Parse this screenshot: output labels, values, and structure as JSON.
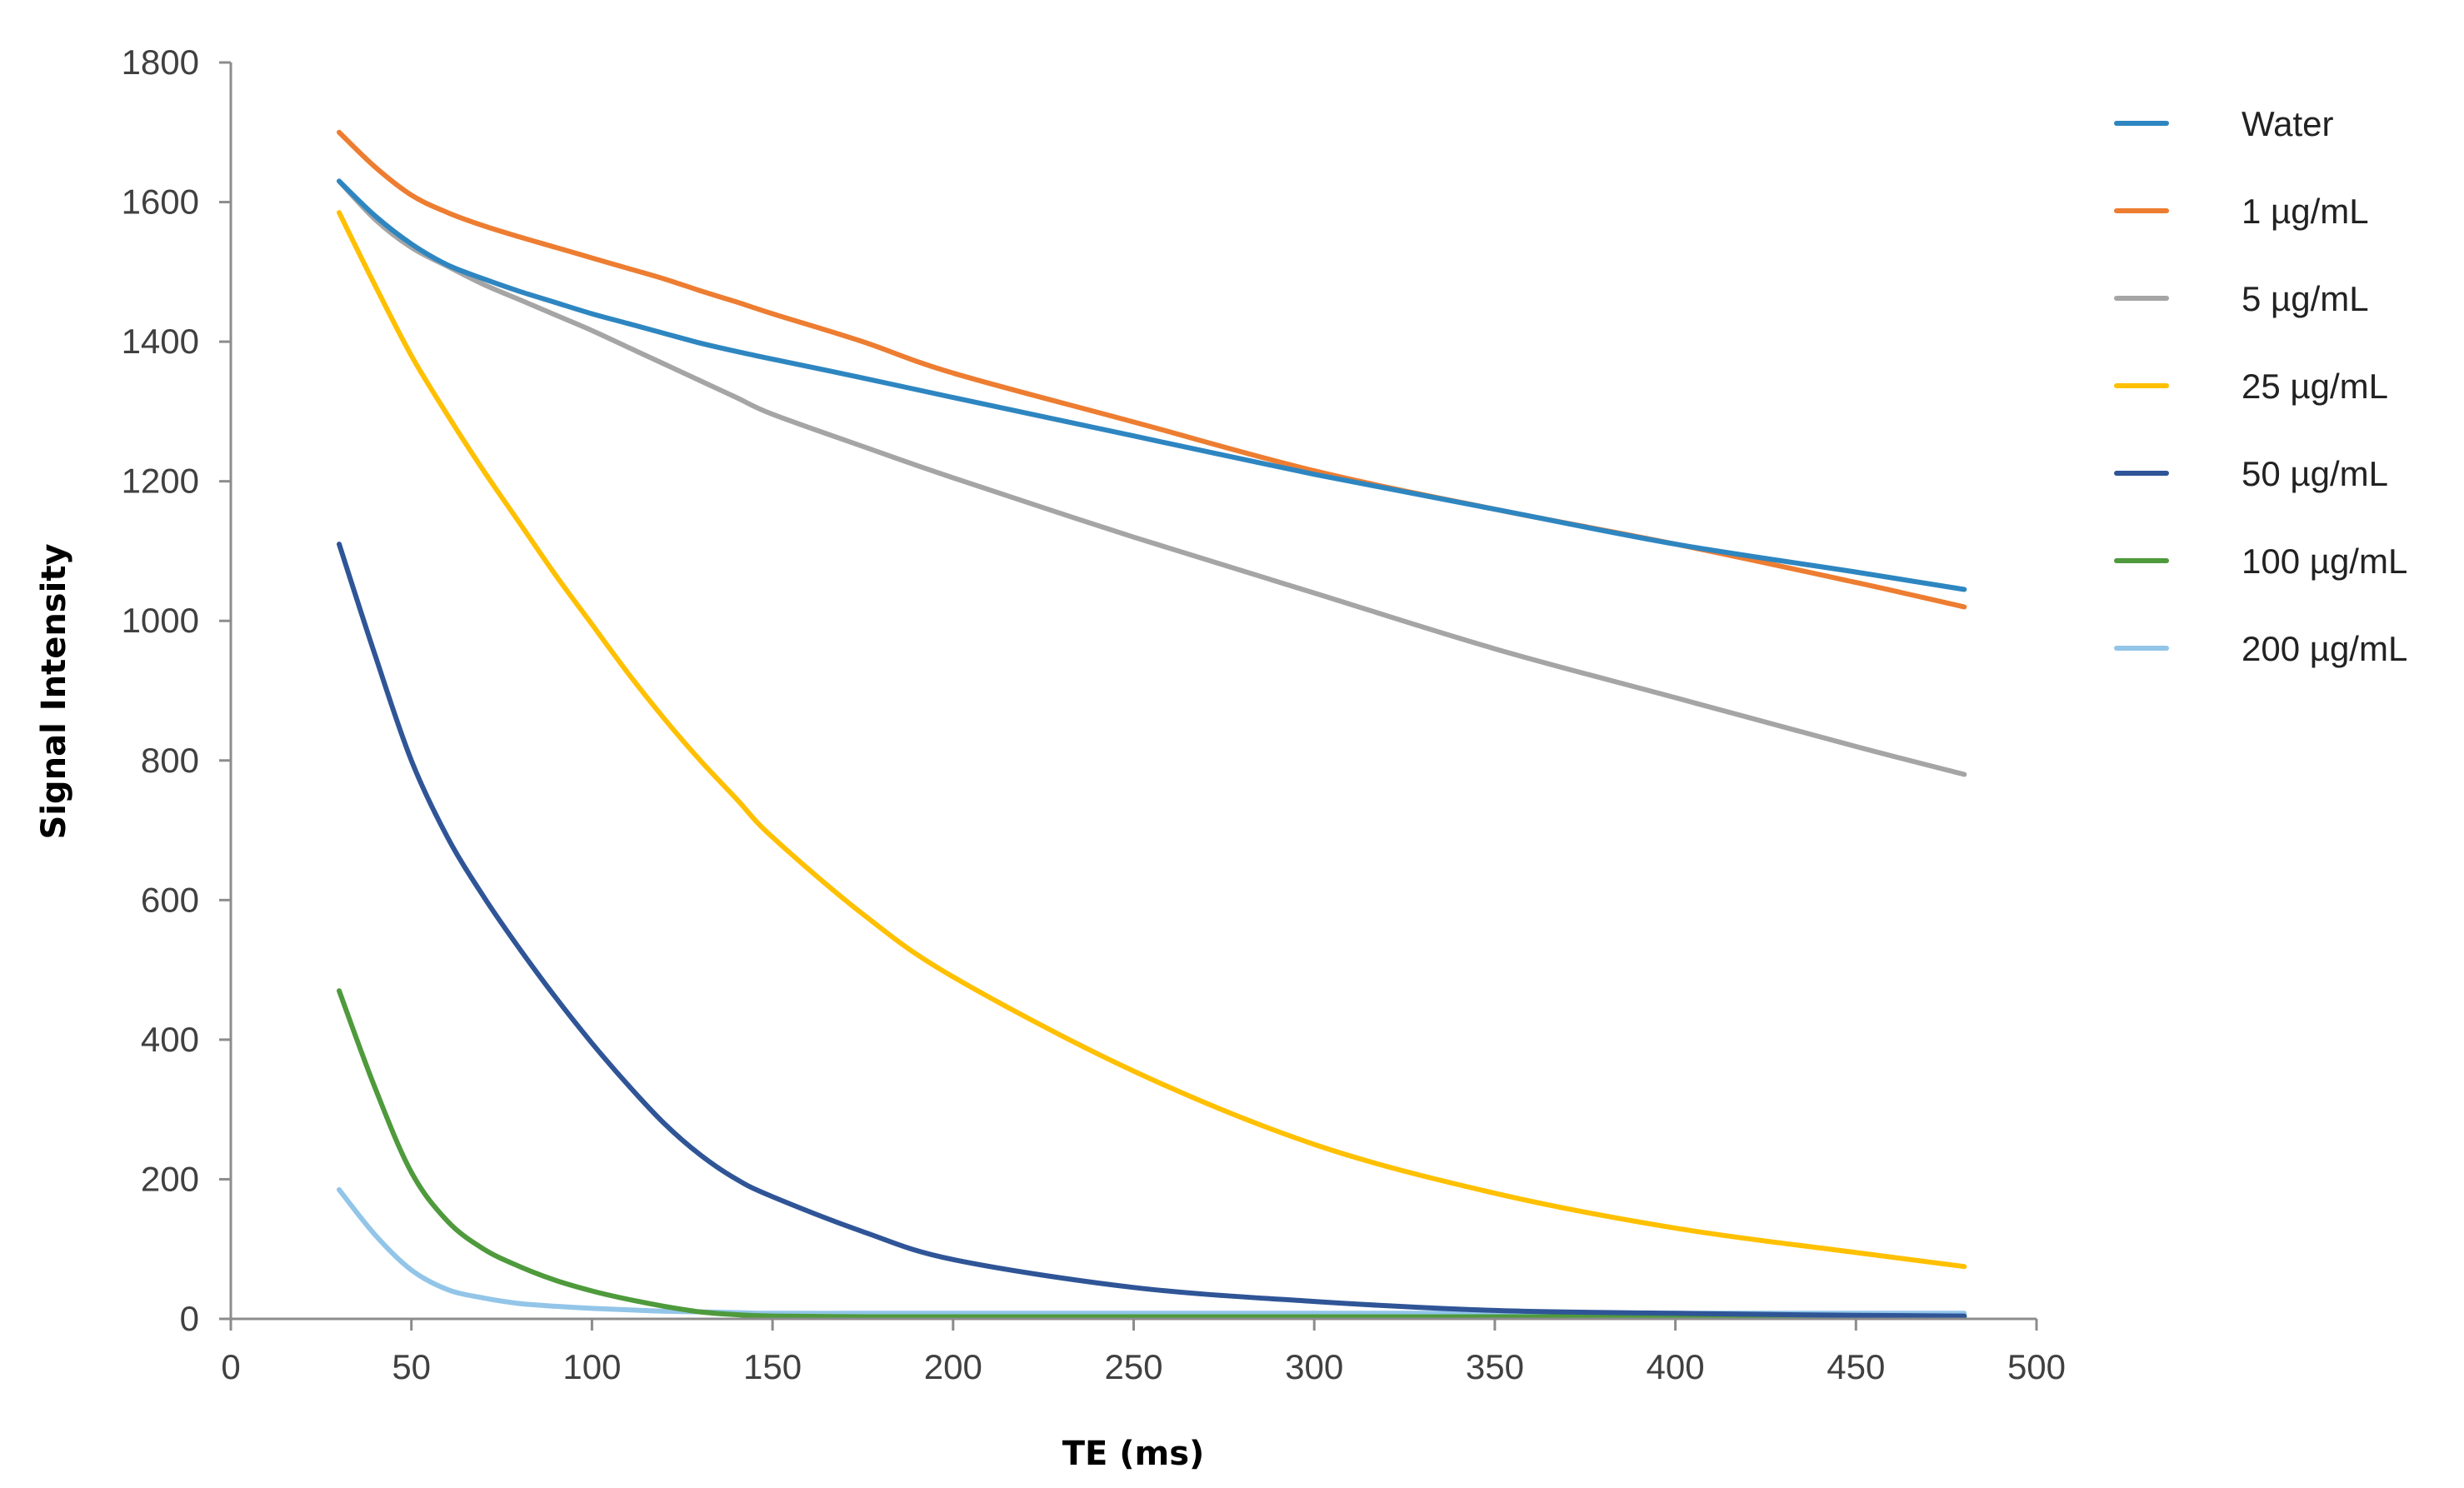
{
  "chart_data": {
    "type": "line",
    "title": "",
    "xlabel": "TE (ms)",
    "ylabel": "Signal Intensity",
    "xlim": [
      0,
      500
    ],
    "ylim": [
      0,
      1800
    ],
    "xticks": [
      0,
      50,
      100,
      150,
      200,
      250,
      300,
      350,
      400,
      450,
      500
    ],
    "yticks": [
      0,
      200,
      400,
      600,
      800,
      1000,
      1200,
      1400,
      1600,
      1800
    ],
    "grid": false,
    "legend_position": "right",
    "x": [
      30,
      40,
      50,
      60,
      70,
      80,
      90,
      100,
      110,
      120,
      130,
      140,
      150,
      175,
      200,
      250,
      300,
      350,
      400,
      450,
      480
    ],
    "series": [
      {
        "name": "Water",
        "color": "#2E86C1",
        "values": [
          1630,
          1580,
          1540,
          1510,
          1490,
          1472,
          1456,
          1440,
          1426,
          1412,
          1398,
          1386,
          1375,
          1348,
          1320,
          1265,
          1210,
          1160,
          1110,
          1070,
          1045
        ]
      },
      {
        "name": "1 µg/mL",
        "color": "#ED7D31",
        "values": [
          1700,
          1650,
          1610,
          1585,
          1566,
          1550,
          1535,
          1520,
          1505,
          1490,
          1473,
          1457,
          1440,
          1400,
          1355,
          1285,
          1215,
          1160,
          1110,
          1055,
          1020
        ]
      },
      {
        "name": "5 µg/mL",
        "color": "#A5A5A5",
        "values": [
          1630,
          1575,
          1535,
          1508,
          1482,
          1460,
          1438,
          1416,
          1392,
          1368,
          1344,
          1320,
          1296,
          1250,
          1205,
          1120,
          1040,
          960,
          890,
          820,
          780
        ]
      },
      {
        "name": "25 µg/mL",
        "color": "#FFC000",
        "values": [
          1585,
          1480,
          1380,
          1295,
          1215,
          1140,
          1065,
          995,
          925,
          860,
          800,
          745,
          690,
          580,
          490,
          355,
          250,
          180,
          130,
          95,
          75
        ]
      },
      {
        "name": "50 µg/mL",
        "color": "#2F5597",
        "values": [
          1110,
          950,
          800,
          690,
          605,
          530,
          460,
          395,
          335,
          280,
          235,
          200,
          175,
          125,
          85,
          45,
          25,
          12,
          8,
          5,
          4
        ]
      },
      {
        "name": "100 µg/mL",
        "color": "#4E9A3C",
        "values": [
          470,
          330,
          210,
          140,
          100,
          75,
          55,
          40,
          28,
          18,
          10,
          6,
          4,
          3,
          3,
          3,
          3,
          3,
          3,
          3,
          3
        ]
      },
      {
        "name": "200 µg/mL",
        "color": "#92C5E8",
        "values": [
          185,
          120,
          70,
          42,
          30,
          22,
          18,
          15,
          13,
          11,
          10,
          9,
          8,
          8,
          8,
          8,
          8,
          8,
          8,
          8,
          8
        ]
      }
    ]
  }
}
